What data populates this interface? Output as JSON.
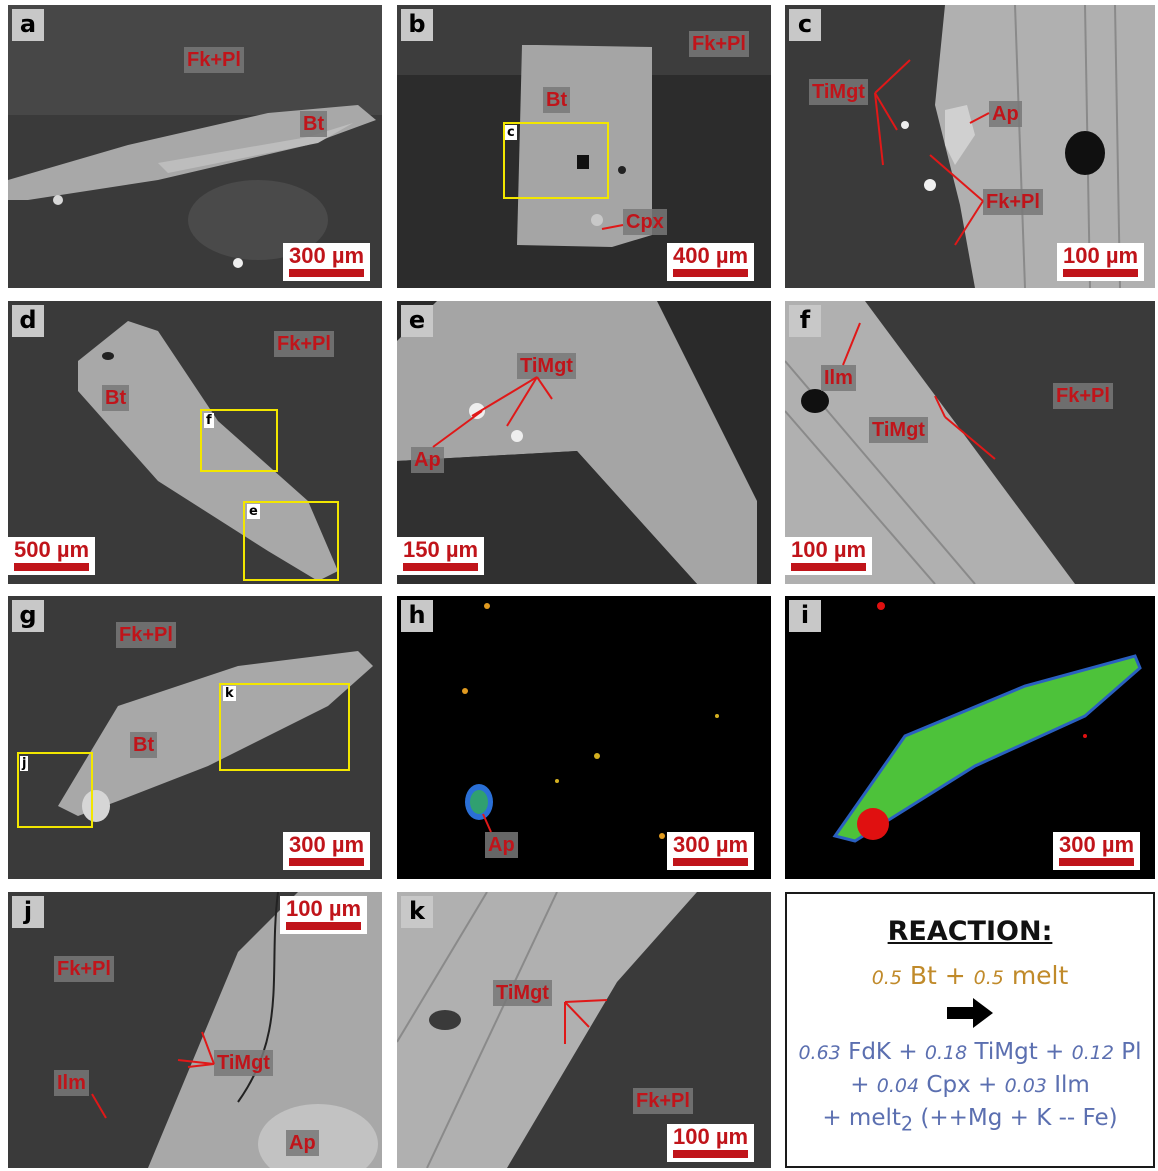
{
  "panels": [
    {
      "letter": "a",
      "labels": [
        "Fk+Pl",
        "Bt"
      ],
      "scale": "300 µm"
    },
    {
      "letter": "b",
      "labels": [
        "Fk+Pl",
        "Bt",
        "Cpx"
      ],
      "box_labels": [
        "c"
      ],
      "scale": "400 µm"
    },
    {
      "letter": "c",
      "labels": [
        "TiMgt",
        "Ap",
        "Fk+Pl"
      ],
      "scale": "100 µm"
    },
    {
      "letter": "d",
      "labels": [
        "Fk+Pl",
        "Bt"
      ],
      "box_labels": [
        "f",
        "e"
      ],
      "scale": "500 µm"
    },
    {
      "letter": "e",
      "labels": [
        "TiMgt",
        "Ap"
      ],
      "scale": "150 µm"
    },
    {
      "letter": "f",
      "labels": [
        "Ilm",
        "Fk+Pl",
        "TiMgt"
      ],
      "scale": "100 µm"
    },
    {
      "letter": "g",
      "labels": [
        "Fk+Pl",
        "Bt"
      ],
      "box_labels": [
        "k",
        "j"
      ],
      "scale": "300 µm"
    },
    {
      "letter": "h",
      "labels": [
        "Ap"
      ],
      "scale": "300 µm"
    },
    {
      "letter": "i",
      "labels": [],
      "scale": "300 µm"
    },
    {
      "letter": "j",
      "labels": [
        "Fk+Pl",
        "TiMgt",
        "Ilm",
        "Ap"
      ],
      "scale": "100 µm"
    },
    {
      "letter": "k",
      "labels": [
        "TiMgt",
        "Fk+Pl"
      ],
      "scale": "100 µm"
    }
  ],
  "reaction": {
    "title": "REACTION:",
    "line1": {
      "c1": "0.5",
      "s1": " Bt + ",
      "c2": "0.5",
      "s2": " melt"
    },
    "line2": {
      "c1": "0.63",
      "s1": " FdK + ",
      "c2": "0.18",
      "s2": " TiMgt + ",
      "c3": "0.12",
      "s3": " Pl"
    },
    "line3": {
      "s0": "+ ",
      "c1": "0.04",
      "s1": " Cpx + ",
      "c2": "0.03",
      "s2": " Ilm"
    },
    "line4": {
      "s0": "+ melt",
      "sub": "2",
      "s1": " (++Mg + K -- Fe)"
    }
  },
  "colors": {
    "label_red": "#c0141a",
    "box_yellow": "#f2e600",
    "reactant": "#c08a2a",
    "product": "#5b6fb0"
  }
}
